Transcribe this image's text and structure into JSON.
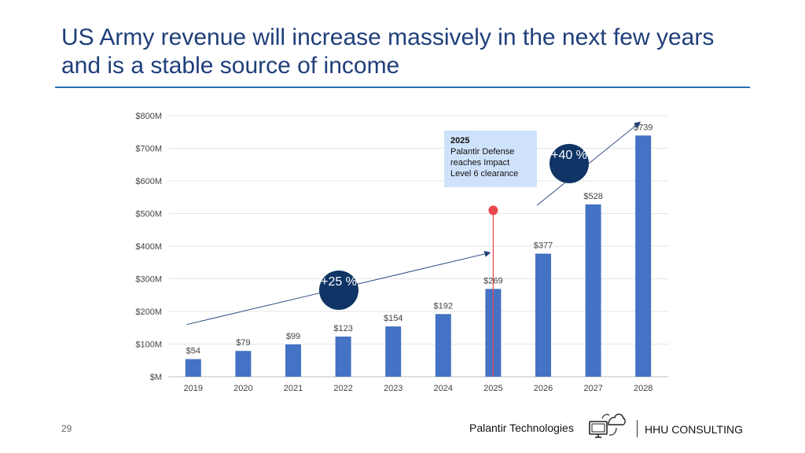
{
  "slide": {
    "title": "US Army revenue will increase massively in the next few years and is a stable source of income",
    "page_number": "29",
    "footer_company": "Palantir Technologies",
    "footer_brand": "HHU CONSULTING"
  },
  "callout": {
    "year": "2025",
    "text": "Palantir Defense reaches Impact Level 6 clearance"
  },
  "badges": {
    "growth_early": "+25 %",
    "growth_late": "+40 %"
  },
  "colors": {
    "bar": "#4472c4",
    "title": "#1f3f7a",
    "badge": "#0f3465",
    "marker": "#e8474b",
    "callout_bg": "#cfe2fb"
  },
  "chart_data": {
    "type": "bar",
    "categories": [
      "2019",
      "2020",
      "2021",
      "2022",
      "2023",
      "2024",
      "2025",
      "2026",
      "2027",
      "2028"
    ],
    "values": [
      54,
      79,
      99,
      123,
      154,
      192,
      269,
      377,
      528,
      739
    ],
    "value_labels": [
      "$54",
      "$79",
      "$99",
      "$123",
      "$154",
      "$192",
      "$269",
      "$377",
      "$528",
      "$739"
    ],
    "y_ticks": [
      0,
      100,
      200,
      300,
      400,
      500,
      600,
      700,
      800
    ],
    "y_tick_labels": [
      "$M",
      "$100M",
      "$200M",
      "$300M",
      "$400M",
      "$500M",
      "$600M",
      "$700M",
      "$800M"
    ],
    "ylim": [
      0,
      800
    ],
    "grid": true,
    "title": "",
    "xlabel": "",
    "ylabel": "",
    "marker": {
      "category": "2025",
      "value": 510
    },
    "trend_arrows": [
      {
        "from": {
          "x": "2019",
          "y": 160
        },
        "to": {
          "x": "2025",
          "y": 380
        }
      },
      {
        "from": {
          "x": "2026",
          "y": 525
        },
        "to": {
          "x": "2028",
          "y": 780
        }
      }
    ]
  }
}
